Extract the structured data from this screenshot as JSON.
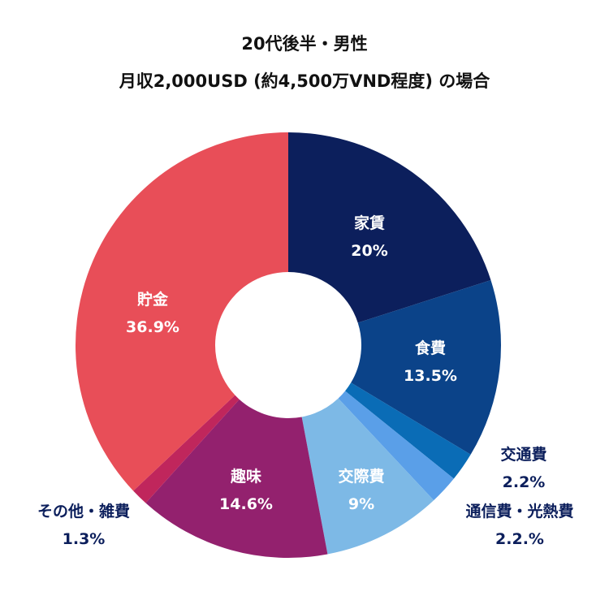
{
  "chart_data": {
    "type": "pie",
    "title": [
      "20代後半・男性",
      "月収2,000USD (約4,500万VND程度) の場合"
    ],
    "donut": true,
    "start": "top, clockwise",
    "slices": [
      {
        "label": "家賃",
        "value": 20,
        "value_label": "20%",
        "color": "#0c1f5c"
      },
      {
        "label": "食費",
        "value": 13.5,
        "value_label": "13.5%",
        "color": "#0b4389"
      },
      {
        "label": "交通費",
        "value": 2.2,
        "value_label": "2.2%",
        "color": "#0a6cb6"
      },
      {
        "label": "通信費・光熱費",
        "value": 2.2,
        "value_label": "2.2.%",
        "color": "#5a9fe8"
      },
      {
        "label": "交際費",
        "value": 9,
        "value_label": "9%",
        "color": "#7db9e6"
      },
      {
        "label": "趣味",
        "value": 14.6,
        "value_label": "14.6%",
        "color": "#93216e"
      },
      {
        "label": "その他・雑費",
        "value": 1.3,
        "value_label": "1.3%",
        "color": "#c0265c"
      },
      {
        "label": "貯金",
        "value": 36.9,
        "value_label": "36.9%",
        "color": "#e84e58"
      }
    ]
  }
}
